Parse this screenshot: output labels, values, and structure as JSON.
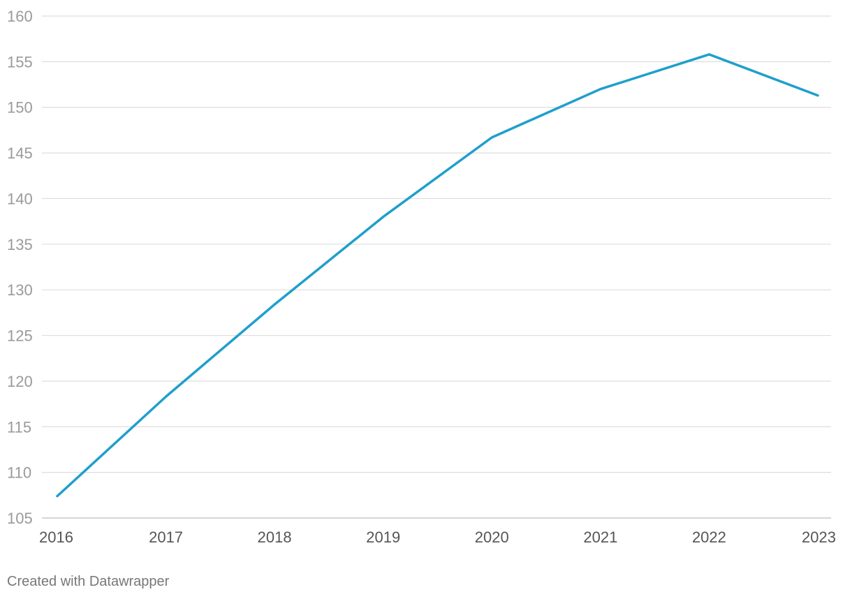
{
  "chart_data": {
    "type": "line",
    "x": [
      "2016",
      "2017",
      "2018",
      "2019",
      "2020",
      "2021",
      "2022",
      "2023"
    ],
    "series": [
      {
        "values": [
          107.4,
          118.3,
          128.4,
          138.0,
          146.7,
          152.0,
          155.8,
          151.3
        ]
      }
    ],
    "yticks": [
      105,
      110,
      115,
      120,
      125,
      130,
      135,
      140,
      145,
      150,
      155,
      160
    ],
    "ylim": [
      105,
      160
    ],
    "xlabel": "",
    "ylabel": "",
    "grid": true,
    "line_color": "#1f9fcc"
  },
  "footer": {
    "credit": "Created with Datawrapper"
  }
}
